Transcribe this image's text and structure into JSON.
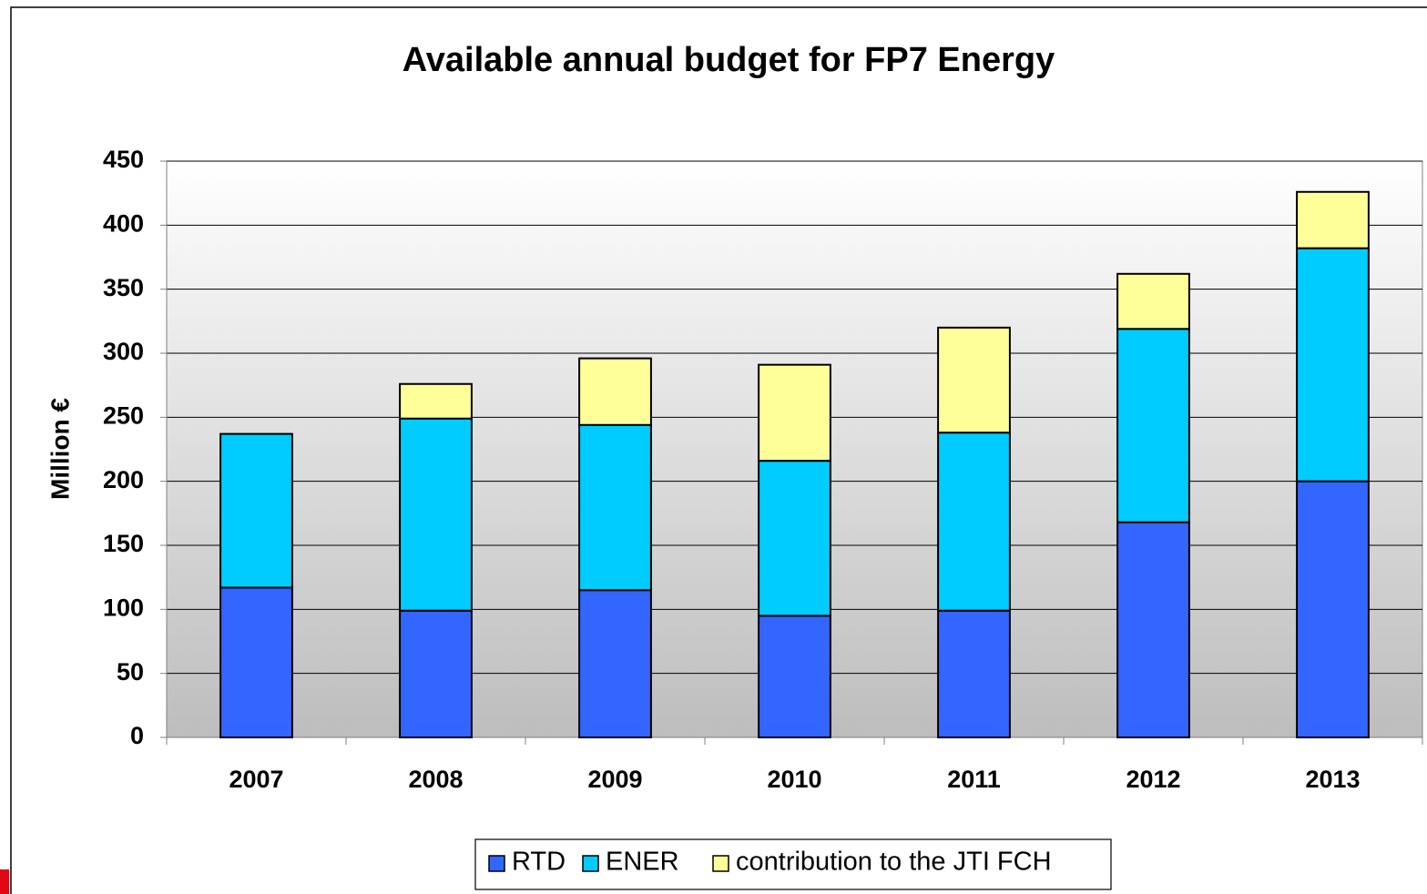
{
  "chart_data": {
    "type": "stacked_bar",
    "title": "Available annual budget for FP7 Energy",
    "ylabel": "Million €",
    "categories": [
      "2007",
      "2008",
      "2009",
      "2010",
      "2011",
      "2012",
      "2013"
    ],
    "series": [
      {
        "name": "RTD",
        "color": "#3366ff",
        "values": [
          117,
          99,
          115,
          95,
          99,
          168,
          200
        ]
      },
      {
        "name": "ENER",
        "color": "#00ccff",
        "values": [
          120,
          150,
          129,
          121,
          139,
          151,
          182
        ]
      },
      {
        "name": "contribution to the JTI FCH",
        "color": "#ffff99",
        "values": [
          0,
          27,
          52,
          75,
          82,
          43,
          44
        ]
      }
    ],
    "ylim": [
      0,
      450
    ],
    "yticks": [
      0,
      50,
      100,
      150,
      200,
      250,
      300,
      350,
      400,
      450
    ],
    "grid": true,
    "legend": "bottom"
  }
}
